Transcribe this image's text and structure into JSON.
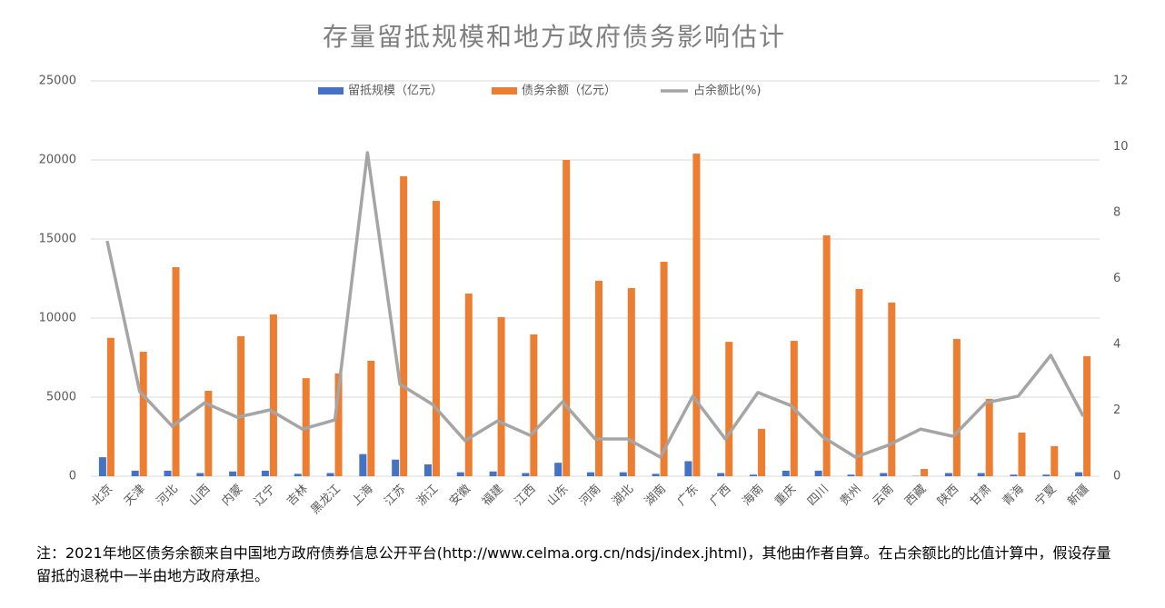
{
  "chart_data": {
    "type": "bar-line",
    "title": "存量留抵规模和地方政府债务影响估计",
    "categories": [
      "北京",
      "天津",
      "河北",
      "山西",
      "内蒙",
      "辽宁",
      "吉林",
      "黑龙江",
      "上海",
      "江苏",
      "浙江",
      "安徽",
      "福建",
      "江西",
      "山东",
      "河南",
      "湖北",
      "湖南",
      "广东",
      "广西",
      "海南",
      "重庆",
      "四川",
      "贵州",
      "云南",
      "西藏",
      "陕西",
      "甘肃",
      "青海",
      "宁夏",
      "新疆"
    ],
    "series": [
      {
        "name": "留抵规模（亿元）",
        "color": "#4472c4",
        "type": "bar",
        "values": [
          1200,
          350,
          350,
          200,
          300,
          350,
          150,
          200,
          1400,
          1050,
          750,
          250,
          300,
          200,
          850,
          250,
          250,
          150,
          950,
          200,
          100,
          350,
          350,
          100,
          200,
          20,
          200,
          200,
          100,
          100,
          250
        ]
      },
      {
        "name": "债务余额（亿元）",
        "color": "#ed7d31",
        "type": "bar",
        "values": [
          8750,
          7870,
          13220,
          5400,
          8850,
          10230,
          6200,
          6500,
          7300,
          18970,
          17410,
          11550,
          10060,
          8970,
          20000,
          12360,
          11900,
          13560,
          20400,
          8500,
          3000,
          8560,
          15230,
          11840,
          10980,
          460,
          8680,
          4890,
          2760,
          1900,
          7590
        ]
      },
      {
        "name": "占余额比(%)",
        "color": "#a5a5a5",
        "type": "line",
        "axis": "y2",
        "values": [
          7.14,
          2.57,
          1.52,
          2.23,
          1.79,
          2.01,
          1.43,
          1.71,
          9.82,
          2.79,
          2.18,
          1.08,
          1.68,
          1.24,
          2.26,
          1.13,
          1.13,
          0.58,
          2.43,
          1.13,
          2.54,
          2.15,
          1.19,
          0.58,
          0.94,
          1.43,
          1.21,
          2.23,
          2.43,
          3.67,
          1.82
        ]
      }
    ],
    "ylim": [
      0,
      25000
    ],
    "yticks": [
      0,
      5000,
      10000,
      15000,
      20000,
      25000
    ],
    "y2lim": [
      0,
      12
    ],
    "y2ticks": [
      0,
      2,
      4,
      6,
      8,
      10,
      12
    ],
    "grid": true,
    "legend": "top",
    "note": "注：2021年地区债务余额来自中国地方政府债券信息公开平台(http://www.celma.org.cn/ndsj/index.jhtml)，其他由作者自算。在占余额比的比值计算中，假设存量留抵的退税中一半由地方政府承担。"
  }
}
